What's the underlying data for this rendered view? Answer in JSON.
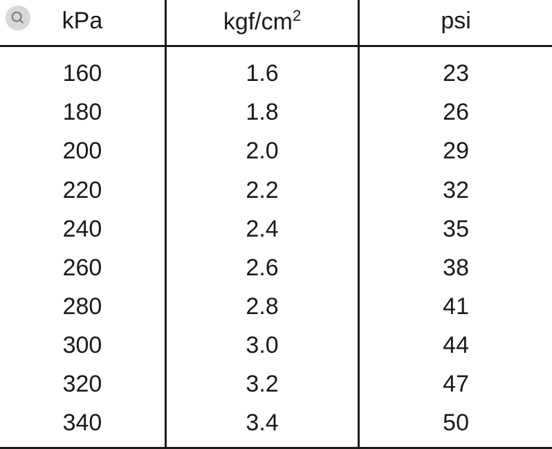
{
  "table": {
    "columns": [
      "kPa",
      "kgf/cm²",
      "psi"
    ],
    "rows": [
      [
        "160",
        "1.6",
        "23"
      ],
      [
        "180",
        "1.8",
        "26"
      ],
      [
        "200",
        "2.0",
        "29"
      ],
      [
        "220",
        "2.2",
        "32"
      ],
      [
        "240",
        "2.4",
        "35"
      ],
      [
        "260",
        "2.6",
        "38"
      ],
      [
        "280",
        "2.8",
        "41"
      ],
      [
        "300",
        "3.0",
        "44"
      ],
      [
        "320",
        "3.2",
        "47"
      ],
      [
        "340",
        "3.4",
        "50"
      ]
    ],
    "text_color": "#1a1a1a",
    "border_color": "#1a1a1a",
    "background_color": "#ffffff",
    "font_size": 34,
    "border_width": 3,
    "icon_bg_color": "#d8d8d8",
    "icon_fg_color": "#808080"
  }
}
